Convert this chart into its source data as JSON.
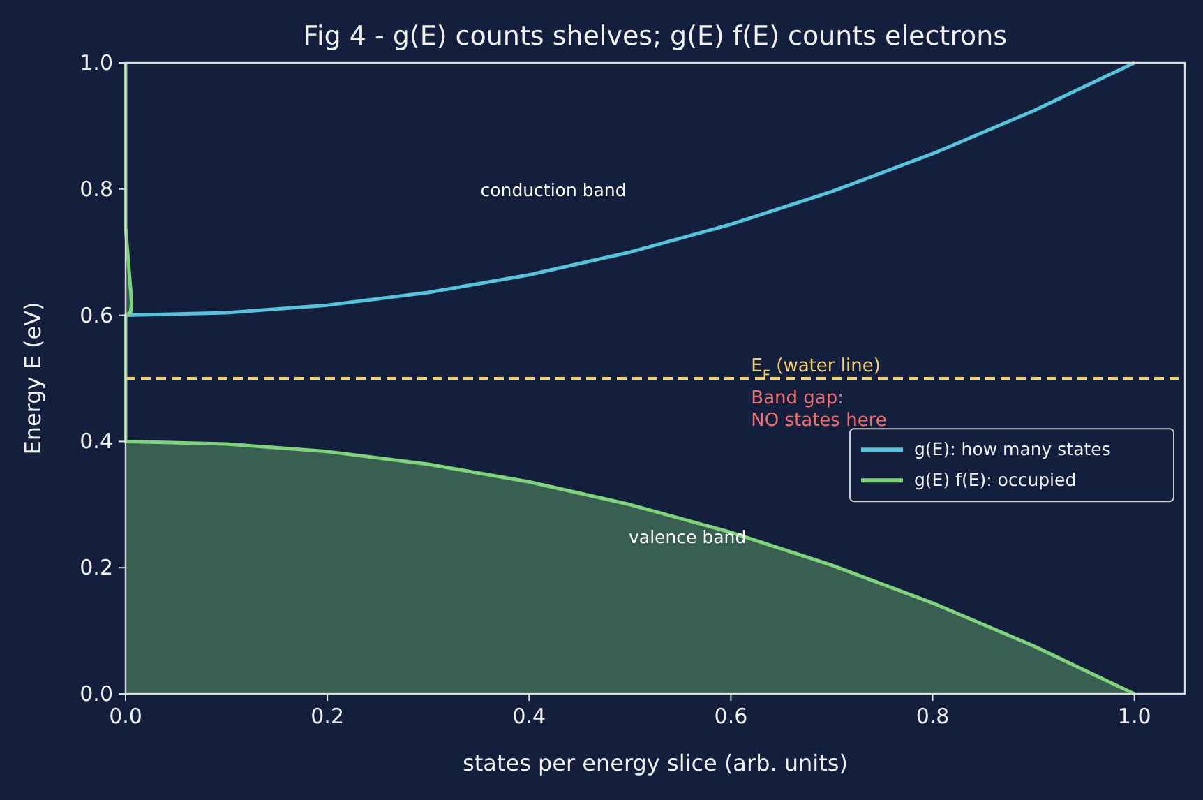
{
  "chart_data": {
    "type": "line",
    "title": "Fig 4 - g(E) counts shelves; g(E) f(E) counts electrons",
    "xlabel": "states per energy slice  (arb. units)",
    "ylabel": "Energy  E  (eV)",
    "xlim": [
      0,
      1.05
    ],
    "ylim": [
      0,
      1.0
    ],
    "xticks": [
      {
        "value": 0,
        "label": "0.0"
      },
      0.2,
      0.4,
      0.6,
      0.8,
      {
        "value": 1,
        "label": "1.0"
      }
    ],
    "yticks": [
      {
        "value": 0,
        "label": "0.0"
      },
      0.2,
      0.4,
      0.6,
      0.8,
      {
        "value": 1,
        "label": "1.0"
      }
    ],
    "series": [
      {
        "name": "g(E): how many states",
        "color": "#56c3dd",
        "x": [
          0,
          0.1,
          0.2,
          0.3,
          0.4,
          0.5,
          0.6,
          0.7,
          0.8,
          0.9,
          1.0
        ],
        "values": [
          0.6,
          0.604,
          0.616,
          0.636,
          0.664,
          0.7,
          0.744,
          0.796,
          0.856,
          0.924,
          1.0
        ]
      },
      {
        "name": "g(E) f(E): occupied",
        "type": "area",
        "color": "#7fd37a",
        "x": [
          0,
          0,
          0.006,
          0.005,
          0,
          0,
          0.1,
          0.2,
          0.3,
          0.4,
          0.5,
          0.6,
          0.7,
          0.8,
          0.9,
          1.0
        ],
        "values": [
          1.0,
          0.74,
          0.62,
          0.605,
          0.6,
          0.4,
          0.396,
          0.384,
          0.364,
          0.336,
          0.3,
          0.256,
          0.204,
          0.144,
          0.076,
          0
        ]
      }
    ],
    "ref_lines": [
      {
        "axis": "y",
        "value": 0.5,
        "label": "E$_{F}$ (water line)",
        "color": "#f2d272",
        "line_style": "dashed"
      }
    ],
    "annotations": [
      "conduction band",
      "valence band",
      {
        "text": "Band gap:\nNO states here",
        "x": 0.62,
        "y": 0.5
      }
    ],
    "legend": "right",
    "grid": false,
    "line_style": "solid",
    "marker": "none"
  }
}
